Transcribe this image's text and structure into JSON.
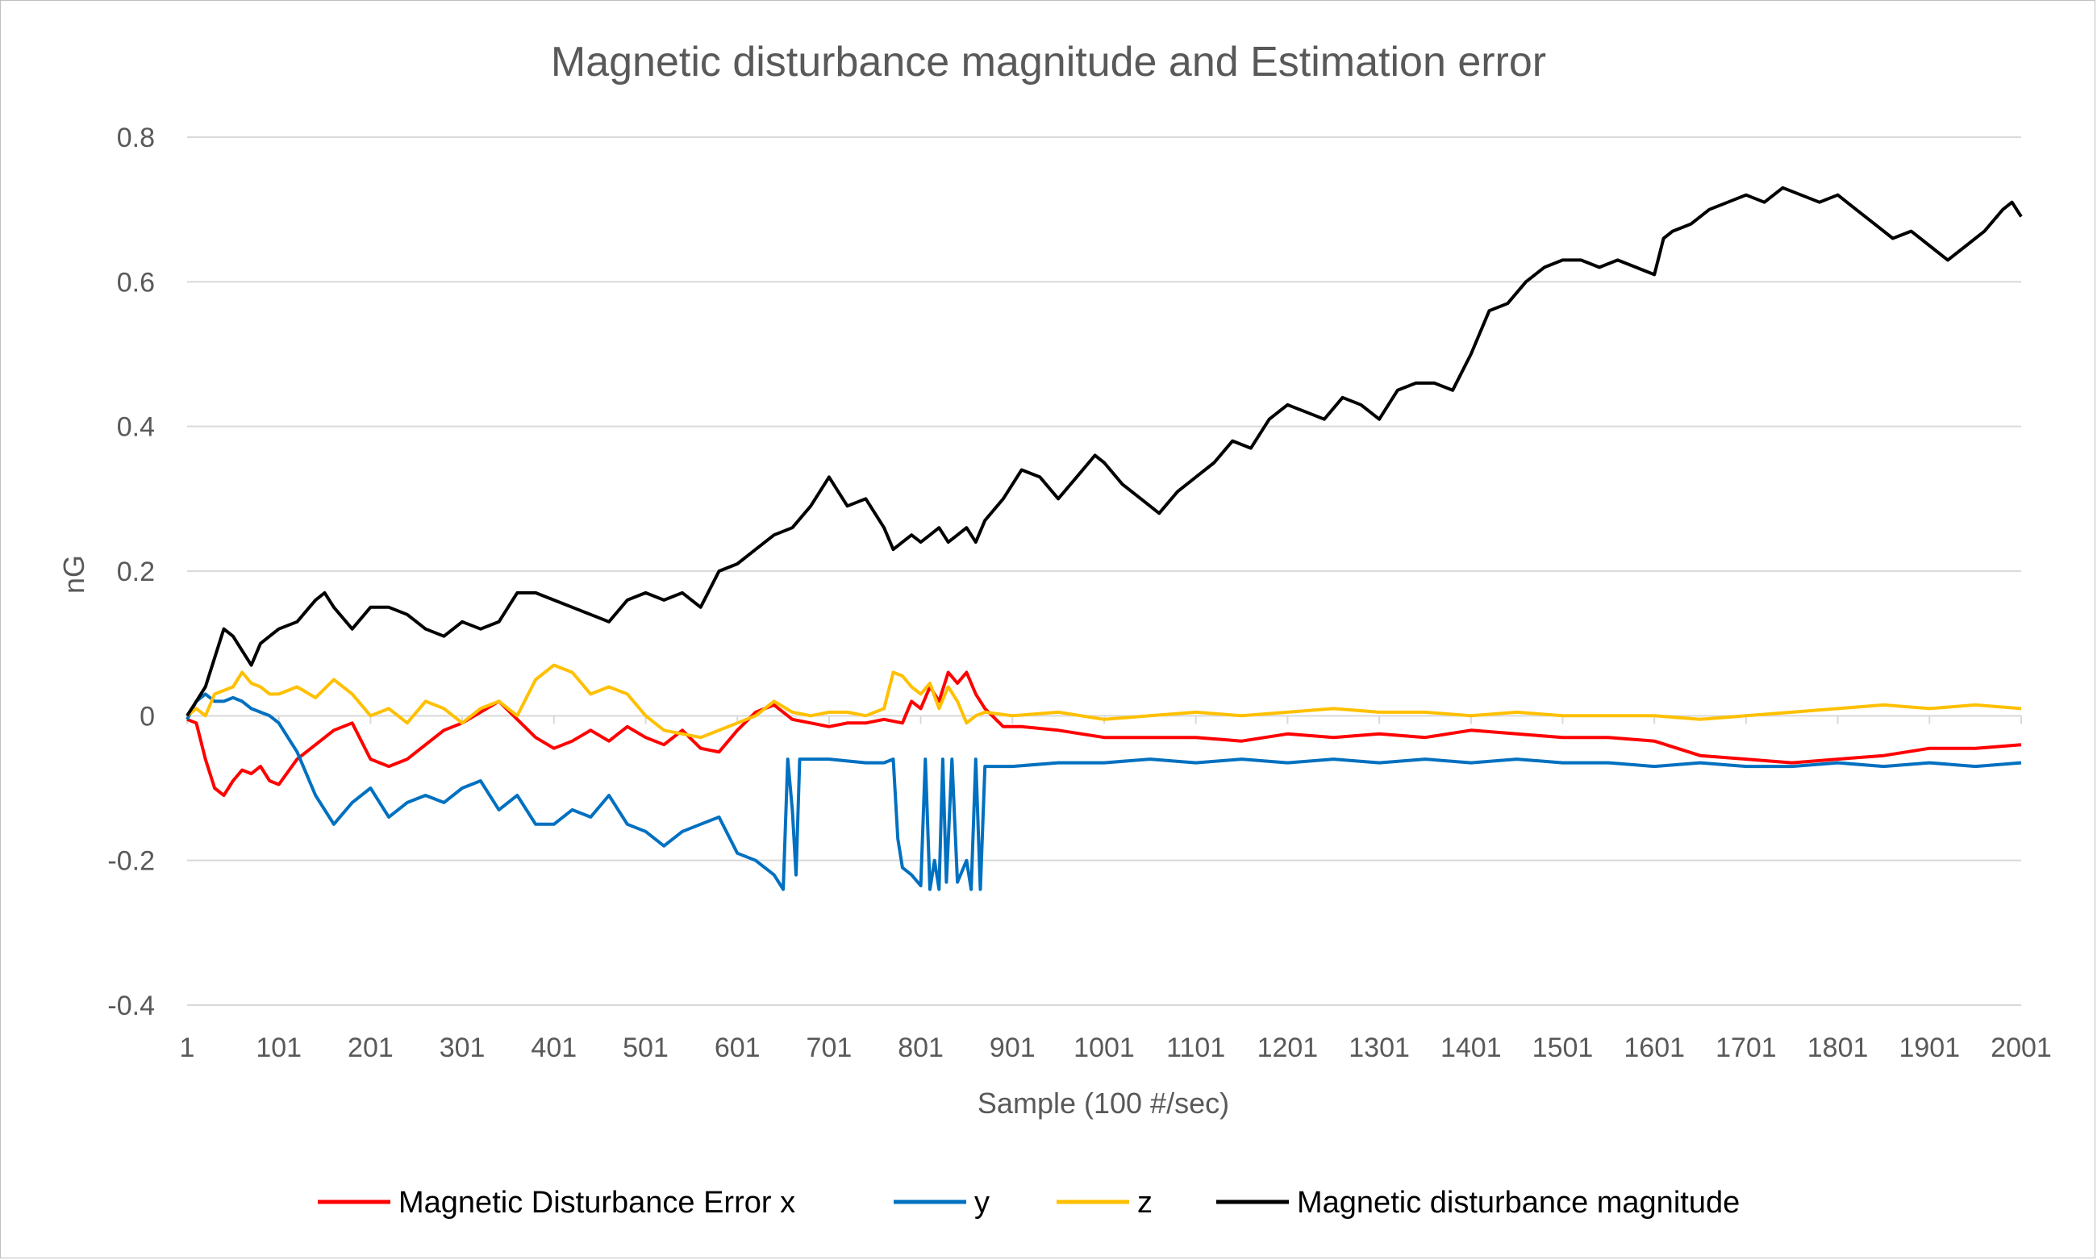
{
  "chart_data": {
    "type": "line",
    "title": "Magnetic disturbance magnitude and Estimation error",
    "xlabel": "Sample (100 #/sec)",
    "ylabel": "nG",
    "xlim": [
      1,
      2001
    ],
    "ylim": [
      -0.4,
      0.8
    ],
    "x_ticks": [
      "1",
      "101",
      "201",
      "301",
      "401",
      "501",
      "601",
      "701",
      "801",
      "901",
      "1001",
      "1101",
      "1201",
      "1301",
      "1401",
      "1501",
      "1601",
      "1701",
      "1801",
      "1901",
      "2001"
    ],
    "y_ticks": [
      "-0.4",
      "-0.2",
      "0",
      "0.2",
      "0.4",
      "0.6",
      "0.8"
    ],
    "grid": true,
    "legend_position": "bottom",
    "series": [
      {
        "name": "Magnetic Disturbance Error x",
        "color": "#ff0000",
        "x": [
          1,
          11,
          21,
          31,
          41,
          51,
          61,
          71,
          81,
          91,
          101,
          121,
          141,
          161,
          181,
          201,
          221,
          241,
          261,
          281,
          301,
          321,
          341,
          361,
          381,
          401,
          421,
          441,
          461,
          481,
          501,
          521,
          541,
          561,
          581,
          601,
          621,
          641,
          661,
          681,
          701,
          721,
          741,
          761,
          781,
          791,
          801,
          811,
          821,
          831,
          841,
          851,
          861,
          871,
          891,
          911,
          951,
          1001,
          1051,
          1101,
          1151,
          1201,
          1251,
          1301,
          1351,
          1401,
          1451,
          1501,
          1551,
          1601,
          1651,
          1701,
          1751,
          1801,
          1851,
          1901,
          1951,
          2001
        ],
        "y": [
          -0.005,
          -0.01,
          -0.06,
          -0.1,
          -0.11,
          -0.09,
          -0.075,
          -0.08,
          -0.07,
          -0.09,
          -0.095,
          -0.06,
          -0.04,
          -0.02,
          -0.01,
          -0.06,
          -0.07,
          -0.06,
          -0.04,
          -0.02,
          -0.01,
          0.005,
          0.02,
          -0.005,
          -0.03,
          -0.045,
          -0.035,
          -0.02,
          -0.035,
          -0.015,
          -0.03,
          -0.04,
          -0.02,
          -0.045,
          -0.05,
          -0.02,
          0.005,
          0.015,
          -0.005,
          -0.01,
          -0.015,
          -0.01,
          -0.01,
          -0.005,
          -0.01,
          0.02,
          0.01,
          0.04,
          0.02,
          0.06,
          0.045,
          0.06,
          0.03,
          0.01,
          -0.015,
          -0.015,
          -0.02,
          -0.03,
          -0.03,
          -0.03,
          -0.035,
          -0.025,
          -0.03,
          -0.025,
          -0.03,
          -0.02,
          -0.025,
          -0.03,
          -0.03,
          -0.035,
          -0.055,
          -0.06,
          -0.065,
          -0.06,
          -0.055,
          -0.045,
          -0.045,
          -0.04
        ]
      },
      {
        "name": "y",
        "color": "#0070c0",
        "x": [
          1,
          11,
          21,
          31,
          41,
          51,
          61,
          71,
          81,
          91,
          101,
          121,
          141,
          161,
          181,
          201,
          221,
          241,
          261,
          281,
          301,
          321,
          341,
          361,
          381,
          401,
          421,
          441,
          461,
          481,
          501,
          521,
          541,
          561,
          581,
          601,
          621,
          641,
          651,
          656,
          661,
          665,
          669,
          673,
          701,
          741,
          761,
          771,
          776,
          781,
          791,
          801,
          806,
          811,
          816,
          821,
          825,
          829,
          835,
          841,
          851,
          856,
          861,
          866,
          871,
          901,
          951,
          1001,
          1051,
          1101,
          1151,
          1201,
          1251,
          1301,
          1351,
          1401,
          1451,
          1501,
          1551,
          1601,
          1651,
          1701,
          1751,
          1801,
          1851,
          1901,
          1951,
          2001
        ],
        "y": [
          -0.005,
          0.02,
          0.03,
          0.02,
          0.02,
          0.025,
          0.02,
          0.01,
          0.005,
          0.0,
          -0.01,
          -0.05,
          -0.11,
          -0.15,
          -0.12,
          -0.1,
          -0.14,
          -0.12,
          -0.11,
          -0.12,
          -0.1,
          -0.09,
          -0.13,
          -0.11,
          -0.15,
          -0.15,
          -0.13,
          -0.14,
          -0.11,
          -0.15,
          -0.16,
          -0.18,
          -0.16,
          -0.15,
          -0.14,
          -0.19,
          -0.2,
          -0.22,
          -0.24,
          -0.06,
          -0.13,
          -0.22,
          -0.06,
          -0.06,
          -0.06,
          -0.065,
          -0.065,
          -0.06,
          -0.17,
          -0.21,
          -0.22,
          -0.235,
          -0.06,
          -0.24,
          -0.2,
          -0.24,
          -0.06,
          -0.23,
          -0.06,
          -0.23,
          -0.2,
          -0.24,
          -0.06,
          -0.24,
          -0.07,
          -0.07,
          -0.065,
          -0.065,
          -0.06,
          -0.065,
          -0.06,
          -0.065,
          -0.06,
          -0.065,
          -0.06,
          -0.065,
          -0.06,
          -0.065,
          -0.065,
          -0.07,
          -0.065,
          -0.07,
          -0.07,
          -0.065,
          -0.07,
          -0.065,
          -0.07,
          -0.065
        ]
      },
      {
        "name": "z",
        "color": "#ffc000",
        "x": [
          1,
          11,
          21,
          31,
          41,
          51,
          61,
          71,
          81,
          91,
          101,
          121,
          141,
          161,
          181,
          201,
          221,
          241,
          261,
          281,
          301,
          321,
          341,
          361,
          381,
          401,
          421,
          441,
          461,
          481,
          501,
          521,
          541,
          561,
          581,
          601,
          621,
          641,
          661,
          681,
          701,
          721,
          741,
          761,
          771,
          781,
          791,
          801,
          811,
          821,
          831,
          841,
          851,
          861,
          871,
          901,
          951,
          1001,
          1051,
          1101,
          1151,
          1201,
          1251,
          1301,
          1351,
          1401,
          1451,
          1501,
          1551,
          1601,
          1651,
          1701,
          1751,
          1801,
          1851,
          1901,
          1951,
          2001
        ],
        "y": [
          0.0,
          0.01,
          0.0,
          0.03,
          0.035,
          0.04,
          0.06,
          0.045,
          0.04,
          0.03,
          0.03,
          0.04,
          0.025,
          0.05,
          0.03,
          0.0,
          0.01,
          -0.01,
          0.02,
          0.01,
          -0.01,
          0.01,
          0.02,
          0.0,
          0.05,
          0.07,
          0.06,
          0.03,
          0.04,
          0.03,
          0.0,
          -0.02,
          -0.025,
          -0.03,
          -0.02,
          -0.01,
          0.0,
          0.02,
          0.005,
          0.0,
          0.005,
          0.005,
          0.0,
          0.01,
          0.06,
          0.055,
          0.04,
          0.03,
          0.045,
          0.01,
          0.04,
          0.02,
          -0.01,
          0.0,
          0.005,
          0.0,
          0.005,
          -0.005,
          0.0,
          0.005,
          0.0,
          0.005,
          0.01,
          0.005,
          0.005,
          0.0,
          0.005,
          0.0,
          0.0,
          0.0,
          -0.005,
          0.0,
          0.005,
          0.01,
          0.015,
          0.01,
          0.015,
          0.01
        ]
      },
      {
        "name": "Magnetic disturbance magnitude",
        "color": "#000000",
        "x": [
          1,
          11,
          21,
          31,
          41,
          51,
          61,
          71,
          81,
          91,
          101,
          121,
          141,
          151,
          161,
          181,
          201,
          221,
          241,
          261,
          281,
          301,
          321,
          341,
          361,
          381,
          401,
          421,
          441,
          461,
          481,
          501,
          521,
          541,
          561,
          581,
          601,
          621,
          641,
          661,
          681,
          701,
          711,
          721,
          741,
          761,
          771,
          781,
          791,
          801,
          811,
          821,
          831,
          841,
          851,
          861,
          871,
          891,
          911,
          931,
          951,
          971,
          991,
          1001,
          1021,
          1041,
          1061,
          1081,
          1101,
          1121,
          1141,
          1161,
          1181,
          1201,
          1221,
          1241,
          1261,
          1281,
          1301,
          1321,
          1341,
          1361,
          1381,
          1401,
          1421,
          1441,
          1461,
          1481,
          1501,
          1521,
          1541,
          1561,
          1581,
          1601,
          1611,
          1621,
          1641,
          1661,
          1681,
          1701,
          1721,
          1741,
          1761,
          1781,
          1801,
          1821,
          1841,
          1861,
          1881,
          1901,
          1921,
          1941,
          1961,
          1981,
          1991,
          2001
        ],
        "y": [
          0.0,
          0.02,
          0.04,
          0.08,
          0.12,
          0.11,
          0.09,
          0.07,
          0.1,
          0.11,
          0.12,
          0.13,
          0.16,
          0.17,
          0.15,
          0.12,
          0.15,
          0.15,
          0.14,
          0.12,
          0.11,
          0.13,
          0.12,
          0.13,
          0.17,
          0.17,
          0.16,
          0.15,
          0.14,
          0.13,
          0.16,
          0.17,
          0.16,
          0.17,
          0.15,
          0.2,
          0.21,
          0.23,
          0.25,
          0.26,
          0.29,
          0.33,
          0.31,
          0.29,
          0.3,
          0.26,
          0.23,
          0.24,
          0.25,
          0.24,
          0.25,
          0.26,
          0.24,
          0.25,
          0.26,
          0.24,
          0.27,
          0.3,
          0.34,
          0.33,
          0.3,
          0.33,
          0.36,
          0.35,
          0.32,
          0.3,
          0.28,
          0.31,
          0.33,
          0.35,
          0.38,
          0.37,
          0.41,
          0.43,
          0.42,
          0.41,
          0.44,
          0.43,
          0.41,
          0.45,
          0.46,
          0.46,
          0.45,
          0.5,
          0.56,
          0.57,
          0.6,
          0.62,
          0.63,
          0.63,
          0.62,
          0.63,
          0.62,
          0.61,
          0.66,
          0.67,
          0.68,
          0.7,
          0.71,
          0.72,
          0.71,
          0.73,
          0.72,
          0.71,
          0.72,
          0.7,
          0.68,
          0.66,
          0.67,
          0.65,
          0.63,
          0.65,
          0.67,
          0.7,
          0.71,
          0.69
        ]
      }
    ]
  },
  "colors": {
    "grid": "#d9d9d9",
    "text": "#595959",
    "frame": "#bfbfbf"
  }
}
